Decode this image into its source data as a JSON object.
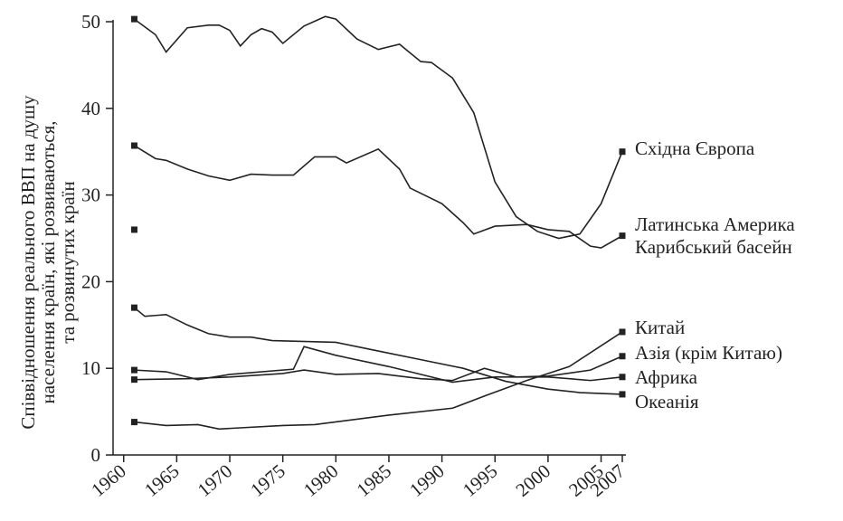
{
  "chart_data": {
    "type": "line",
    "ylabel": [
      "Співвідношення реального ВВП на душу",
      "населення країн, які розвиваються,",
      "та розвинутих країн"
    ],
    "xlim": [
      1959,
      2007
    ],
    "xticks": [
      1960,
      1965,
      1970,
      1975,
      1980,
      1985,
      1990,
      1995,
      2000,
      2005,
      2007
    ],
    "ylim": [
      0,
      50
    ],
    "yticks": [
      0,
      10,
      20,
      30,
      40,
      50
    ],
    "series": [
      {
        "name": "Східна Європа",
        "color": "#222",
        "x": [
          1961,
          1963,
          1964,
          1966,
          1968,
          1969,
          1970,
          1971,
          1972,
          1973,
          1974,
          1975,
          1977,
          1979,
          1980,
          1982,
          1984,
          1986,
          1988,
          1989,
          1991,
          1993,
          1995,
          1997,
          1999,
          2001,
          2003,
          2005,
          2007
        ],
        "values": [
          50.3,
          48.5,
          46.5,
          49.3,
          49.6,
          49.6,
          49,
          47.2,
          48.5,
          49.2,
          48.8,
          47.5,
          49.5,
          50.6,
          50.3,
          48,
          46.8,
          47.4,
          45.4,
          45.3,
          43.5,
          39.5,
          31.5,
          27.5,
          25.8,
          25,
          25.5,
          29,
          35
        ]
      },
      {
        "name": "Латинська Америка Карибський басейн",
        "color": "#222",
        "x": [
          1961,
          1963,
          1964,
          1966,
          1968,
          1970,
          1972,
          1974,
          1976,
          1978,
          1980,
          1981,
          1984,
          1986,
          1987,
          1990,
          1992,
          1993,
          1995,
          1998,
          2000,
          2002,
          2004,
          2005,
          2007
        ],
        "values": [
          35.7,
          34.2,
          34,
          33,
          32.2,
          31.7,
          32.4,
          32.3,
          32.3,
          34.4,
          34.4,
          33.7,
          35.3,
          33,
          30.8,
          29,
          26.8,
          25.5,
          26.4,
          26.6,
          26,
          25.8,
          24.1,
          23.9,
          25.3
        ]
      },
      {
        "color": "#222",
        "x": [
          1961
        ],
        "values": [
          26
        ]
      },
      {
        "name": "Китай",
        "color": "#222",
        "x": [
          1961,
          1964,
          1967,
          1969,
          1975,
          1978,
          1985,
          1991,
          1994,
          1998,
          2002,
          2007
        ],
        "values": [
          3.8,
          3.4,
          3.5,
          3,
          3.4,
          3.5,
          4.6,
          5.4,
          6.8,
          8.6,
          10.2,
          14.2
        ]
      },
      {
        "name": "Азія (крім Китаю)",
        "color": "#222",
        "x": [
          1961,
          1966,
          1970,
          1975,
          1977,
          1980,
          1984,
          1988,
          1991,
          1994,
          1997,
          2000,
          2004,
          2007
        ],
        "values": [
          8.7,
          8.8,
          9,
          9.4,
          9.8,
          9.3,
          9.4,
          8.8,
          8.6,
          10,
          9,
          9.1,
          9.8,
          11.4
        ]
      },
      {
        "name": "Африка",
        "color": "#222",
        "x": [
          1961,
          1964,
          1967,
          1970,
          1976,
          1977,
          1980,
          1985,
          1988,
          1991,
          1995,
          2000,
          2004,
          2007
        ],
        "values": [
          9.8,
          9.6,
          8.7,
          9.3,
          9.9,
          12.5,
          11.5,
          10.2,
          9.3,
          8.4,
          9,
          9,
          8.6,
          9
        ]
      },
      {
        "name": "Океанія",
        "color": "#222",
        "x": [
          1961,
          1962,
          1963,
          1964,
          1966,
          1968,
          1970,
          1972,
          1974,
          1980,
          1984,
          1988,
          1992,
          1996,
          2000,
          2003,
          2007
        ],
        "values": [
          17,
          16,
          16.1,
          16.2,
          15,
          14,
          13.6,
          13.6,
          13.2,
          13,
          12,
          11,
          10,
          8.5,
          7.6,
          7.2,
          7
        ]
      }
    ]
  }
}
